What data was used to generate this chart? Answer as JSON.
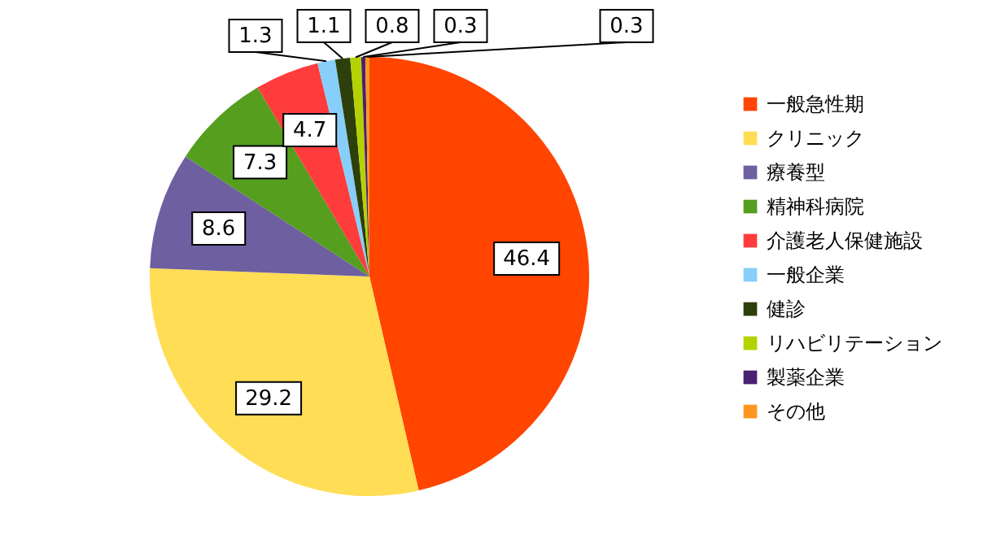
{
  "chart_data": {
    "type": "pie",
    "categories": [
      "一般急性期",
      "クリニック",
      "療養型",
      "精神科病院",
      "介護老人保健施設",
      "一般企業",
      "健診",
      "リハビリテーション",
      "製薬企業",
      "その他"
    ],
    "values": [
      46.4,
      29.2,
      8.6,
      7.3,
      4.7,
      1.3,
      1.1,
      0.8,
      0.3,
      0.3
    ],
    "colors": [
      "#ff4500",
      "#ffdd55",
      "#6e5fa0",
      "#559e1e",
      "#ff3c3c",
      "#87cefa",
      "#2d3f0a",
      "#b4d200",
      "#4a2070",
      "#ff9620"
    ],
    "data_labels": true,
    "legend": "right"
  }
}
